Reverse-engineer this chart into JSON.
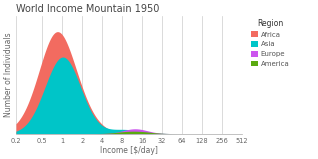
{
  "title": "World Income Mountain 1950",
  "xlabel": "Income [$/day]",
  "ylabel": "Number of Individuals",
  "xtick_labels": [
    "0.2",
    "0.5",
    "1",
    "2",
    "4",
    "8",
    "16",
    "32",
    "64",
    "128",
    "256",
    "512"
  ],
  "xtick_values": [
    0.2,
    0.5,
    1,
    2,
    4,
    8,
    16,
    32,
    64,
    128,
    256,
    512
  ],
  "xlim": [
    0.2,
    512
  ],
  "region_colors": {
    "Africa": "#F26B60",
    "America": "#5aaa10",
    "Asia": "#00C5C8",
    "Europe": "#CC55EE"
  },
  "legend_title": "Region",
  "background_color": "#ffffff",
  "grid_color": "#cccccc"
}
